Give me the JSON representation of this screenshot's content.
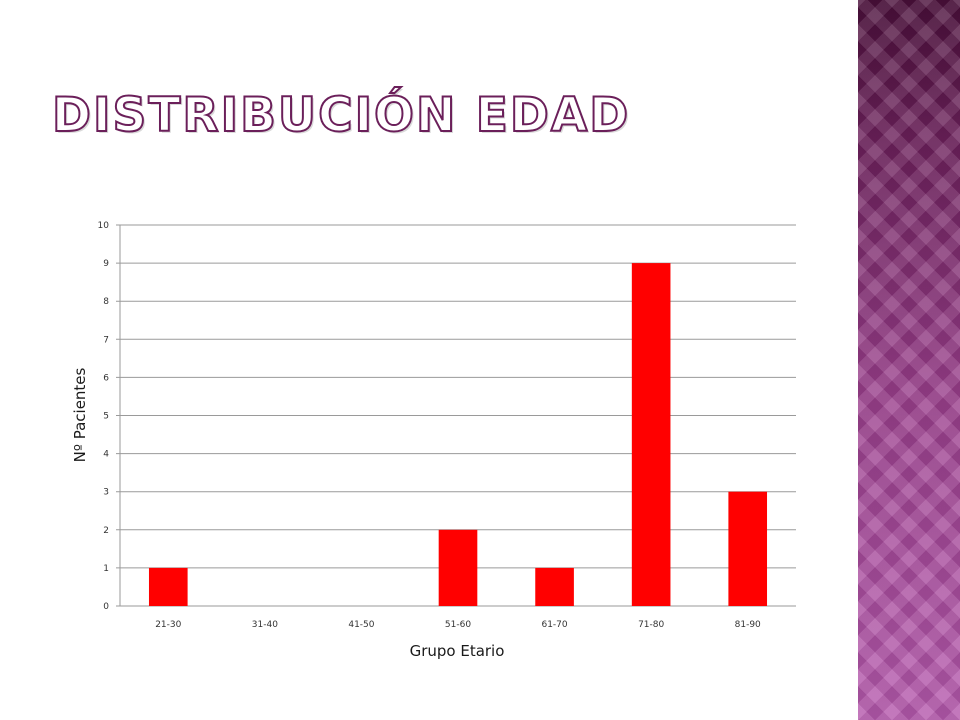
{
  "slide": {
    "title": "DISTRIBUCIÓN EDAD",
    "accent_color": "#8a2f7c"
  },
  "chart_data": {
    "type": "bar",
    "categories": [
      "21-30",
      "31-40",
      "41-50",
      "51-60",
      "61-70",
      "71-80",
      "81-90"
    ],
    "values": [
      1,
      0,
      0,
      2,
      1,
      9,
      3
    ],
    "xlabel": "Grupo Etario",
    "ylabel": "Nº Pacientes",
    "ylim": [
      0,
      10
    ],
    "yticks": [
      0,
      1,
      2,
      3,
      4,
      5,
      6,
      7,
      8,
      9,
      10
    ],
    "grid": true,
    "legend": "none",
    "bar_color": "#ff0000"
  }
}
